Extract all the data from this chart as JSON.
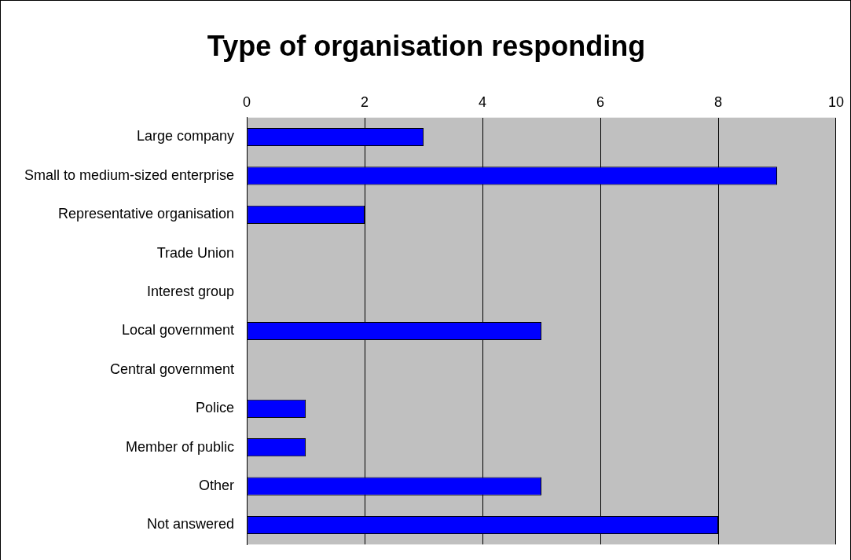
{
  "chart_data": {
    "type": "bar",
    "orientation": "horizontal",
    "title": "Type of organisation responding",
    "categories": [
      "Large company",
      "Small to medium-sized enterprise",
      "Representative organisation",
      "Trade Union",
      "Interest group",
      "Local government",
      "Central government",
      "Police",
      "Member of public",
      "Other",
      "Not answered"
    ],
    "values": [
      3,
      9,
      2,
      0,
      0,
      5,
      0,
      1,
      1,
      5,
      8
    ],
    "color": "#0000ff",
    "xlim": [
      0,
      10
    ],
    "xticks": [
      0,
      2,
      4,
      6,
      8,
      10
    ],
    "grid": "x",
    "legend": false
  }
}
